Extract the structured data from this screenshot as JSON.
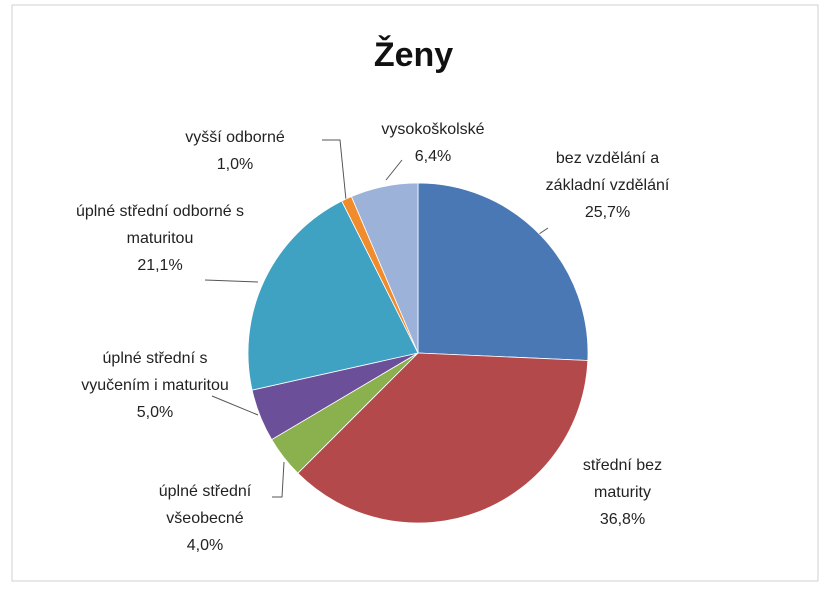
{
  "chart_data": {
    "type": "pie",
    "title": "Ženy",
    "categories": [
      "bez vzdělání a základní vzdělání",
      "střední bez maturity",
      "úplné střední všeobecné",
      "úplné střední s vyučením i maturitou",
      "úplné střední odborné s maturitou",
      "vyšší odborné",
      "vysokoškolské"
    ],
    "values": [
      25.7,
      36.8,
      4.0,
      5.0,
      21.1,
      1.0,
      6.4
    ],
    "value_labels": [
      "25,7%",
      "36,8%",
      "4,0%",
      "5,0%",
      "21,1%",
      "1,0%",
      "6,4%"
    ],
    "colors": [
      "#4a78b4",
      "#b3494a",
      "#8bb04e",
      "#6b4f98",
      "#3fa2c2",
      "#f18c2e",
      "#9db2d8"
    ]
  }
}
